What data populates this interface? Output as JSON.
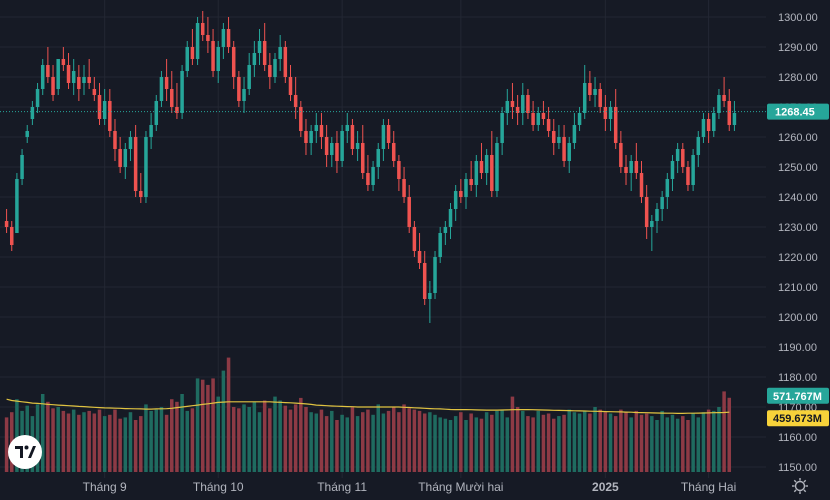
{
  "chart_data": {
    "type": "candlestick",
    "y_axis": {
      "ylim": [
        1150,
        1303
      ],
      "ticks": [
        1300,
        1290,
        1280,
        1270,
        1260,
        1250,
        1240,
        1230,
        1220,
        1210,
        1200,
        1190,
        1180,
        1170,
        1160,
        1150
      ],
      "tick_labels": [
        "1300.00",
        "1290.00",
        "1280.00",
        "1270.00",
        "1260.00",
        "1250.00",
        "1240.00",
        "1230.00",
        "1220.00",
        "1210.00",
        "1200.00",
        "1190.00",
        "1180.00",
        "1170.00",
        "1160.00",
        "1150.00"
      ]
    },
    "x_axis": {
      "labels": [
        {
          "text": "Tháng 9",
          "index": 19,
          "bold": false
        },
        {
          "text": "Tháng 10",
          "index": 41,
          "bold": false
        },
        {
          "text": "Tháng 11",
          "index": 65,
          "bold": false
        },
        {
          "text": "Tháng Mười hai",
          "index": 88,
          "bold": false
        },
        {
          "text": "2025",
          "index": 116,
          "bold": true
        },
        {
          "text": "Tháng Hai",
          "index": 136,
          "bold": false
        }
      ]
    },
    "last_price": {
      "value": 1268.45,
      "label": "1268.45",
      "color": "#26a69a"
    },
    "volume_badges": [
      {
        "label": "571.767M",
        "color": "#26a69a",
        "text_color": "#ffffff"
      },
      {
        "label": "459.673M",
        "color": "#f7d23a",
        "text_color": "#131722"
      }
    ],
    "colors": {
      "up": "#26a69a",
      "down": "#ef5350",
      "vol_up": "#1f6b60",
      "vol_down": "#8d3a45",
      "ma": "#e0c341",
      "background": "#161a25",
      "grid": "#232733"
    },
    "candles": [
      [
        1232,
        1236,
        1228,
        1230
      ],
      [
        1230,
        1232,
        1222,
        1224
      ],
      [
        1228,
        1248,
        1228,
        1246
      ],
      [
        1246,
        1256,
        1244,
        1254
      ],
      [
        1260,
        1264,
        1258,
        1262
      ],
      [
        1266,
        1272,
        1264,
        1270
      ],
      [
        1270,
        1278,
        1268,
        1276
      ],
      [
        1276,
        1286,
        1274,
        1284
      ],
      [
        1284,
        1290,
        1278,
        1280
      ],
      [
        1280,
        1284,
        1272,
        1274
      ],
      [
        1276,
        1286,
        1274,
        1286
      ],
      [
        1286,
        1290,
        1282,
        1284
      ],
      [
        1284,
        1288,
        1276,
        1278
      ],
      [
        1278,
        1286,
        1274,
        1282
      ],
      [
        1280,
        1284,
        1272,
        1276
      ],
      [
        1278,
        1284,
        1274,
        1280
      ],
      [
        1280,
        1286,
        1276,
        1278
      ],
      [
        1276,
        1280,
        1272,
        1274
      ],
      [
        1274,
        1278,
        1264,
        1266
      ],
      [
        1266,
        1276,
        1264,
        1272
      ],
      [
        1272,
        1276,
        1260,
        1262
      ],
      [
        1262,
        1266,
        1252,
        1256
      ],
      [
        1256,
        1260,
        1248,
        1250
      ],
      [
        1250,
        1258,
        1246,
        1256
      ],
      [
        1256,
        1262,
        1252,
        1260
      ],
      [
        1260,
        1264,
        1240,
        1242
      ],
      [
        1242,
        1248,
        1238,
        1240
      ],
      [
        1240,
        1262,
        1238,
        1260
      ],
      [
        1260,
        1268,
        1256,
        1264
      ],
      [
        1264,
        1274,
        1262,
        1272
      ],
      [
        1272,
        1282,
        1270,
        1280
      ],
      [
        1280,
        1286,
        1272,
        1276
      ],
      [
        1276,
        1282,
        1268,
        1270
      ],
      [
        1270,
        1278,
        1266,
        1268
      ],
      [
        1268,
        1284,
        1266,
        1282
      ],
      [
        1282,
        1292,
        1280,
        1290
      ],
      [
        1290,
        1296,
        1284,
        1286
      ],
      [
        1286,
        1300,
        1284,
        1298
      ],
      [
        1298,
        1302,
        1292,
        1294
      ],
      [
        1294,
        1300,
        1288,
        1292
      ],
      [
        1292,
        1296,
        1280,
        1282
      ],
      [
        1282,
        1292,
        1278,
        1290
      ],
      [
        1290,
        1298,
        1286,
        1296
      ],
      [
        1296,
        1300,
        1288,
        1290
      ],
      [
        1290,
        1292,
        1276,
        1280
      ],
      [
        1280,
        1282,
        1270,
        1272
      ],
      [
        1272,
        1280,
        1268,
        1276
      ],
      [
        1276,
        1288,
        1274,
        1284
      ],
      [
        1284,
        1292,
        1280,
        1288
      ],
      [
        1288,
        1296,
        1284,
        1292
      ],
      [
        1292,
        1298,
        1282,
        1284
      ],
      [
        1284,
        1288,
        1276,
        1280
      ],
      [
        1280,
        1288,
        1278,
        1286
      ],
      [
        1286,
        1294,
        1282,
        1290
      ],
      [
        1290,
        1292,
        1278,
        1280
      ],
      [
        1280,
        1284,
        1272,
        1274
      ],
      [
        1274,
        1280,
        1266,
        1270
      ],
      [
        1270,
        1272,
        1260,
        1262
      ],
      [
        1262,
        1266,
        1254,
        1258
      ],
      [
        1258,
        1264,
        1254,
        1262
      ],
      [
        1262,
        1268,
        1258,
        1264
      ],
      [
        1264,
        1268,
        1256,
        1260
      ],
      [
        1260,
        1264,
        1250,
        1254
      ],
      [
        1254,
        1260,
        1250,
        1258
      ],
      [
        1258,
        1262,
        1248,
        1252
      ],
      [
        1252,
        1264,
        1250,
        1262
      ],
      [
        1262,
        1268,
        1258,
        1264
      ],
      [
        1264,
        1266,
        1254,
        1256
      ],
      [
        1256,
        1262,
        1252,
        1258
      ],
      [
        1258,
        1264,
        1246,
        1248
      ],
      [
        1248,
        1254,
        1242,
        1244
      ],
      [
        1244,
        1252,
        1242,
        1250
      ],
      [
        1250,
        1258,
        1246,
        1256
      ],
      [
        1256,
        1266,
        1252,
        1264
      ],
      [
        1264,
        1266,
        1256,
        1258
      ],
      [
        1258,
        1262,
        1250,
        1252
      ],
      [
        1252,
        1254,
        1242,
        1246
      ],
      [
        1246,
        1250,
        1238,
        1240
      ],
      [
        1240,
        1244,
        1228,
        1230
      ],
      [
        1230,
        1232,
        1220,
        1222
      ],
      [
        1222,
        1228,
        1216,
        1218
      ],
      [
        1218,
        1222,
        1204,
        1206
      ],
      [
        1206,
        1212,
        1198,
        1208
      ],
      [
        1208,
        1222,
        1206,
        1220
      ],
      [
        1220,
        1230,
        1218,
        1228
      ],
      [
        1228,
        1232,
        1224,
        1230
      ],
      [
        1230,
        1238,
        1226,
        1236
      ],
      [
        1236,
        1244,
        1232,
        1242
      ],
      [
        1242,
        1246,
        1238,
        1240
      ],
      [
        1240,
        1248,
        1236,
        1246
      ],
      [
        1246,
        1252,
        1242,
        1244
      ],
      [
        1244,
        1254,
        1240,
        1252
      ],
      [
        1252,
        1258,
        1246,
        1248
      ],
      [
        1248,
        1256,
        1244,
        1254
      ],
      [
        1254,
        1262,
        1240,
        1242
      ],
      [
        1242,
        1260,
        1240,
        1258
      ],
      [
        1258,
        1270,
        1254,
        1268
      ],
      [
        1268,
        1276,
        1264,
        1272
      ],
      [
        1272,
        1278,
        1266,
        1270
      ],
      [
        1270,
        1274,
        1264,
        1268
      ],
      [
        1268,
        1278,
        1264,
        1274
      ],
      [
        1274,
        1276,
        1266,
        1268
      ],
      [
        1268,
        1272,
        1262,
        1264
      ],
      [
        1264,
        1270,
        1262,
        1268
      ],
      [
        1268,
        1272,
        1264,
        1266
      ],
      [
        1266,
        1270,
        1260,
        1262
      ],
      [
        1262,
        1266,
        1254,
        1258
      ],
      [
        1258,
        1264,
        1256,
        1260
      ],
      [
        1260,
        1264,
        1250,
        1252
      ],
      [
        1252,
        1260,
        1248,
        1258
      ],
      [
        1258,
        1268,
        1256,
        1264
      ],
      [
        1264,
        1270,
        1262,
        1268
      ],
      [
        1268,
        1284,
        1266,
        1278
      ],
      [
        1278,
        1282,
        1272,
        1274
      ],
      [
        1274,
        1280,
        1270,
        1276
      ],
      [
        1276,
        1278,
        1268,
        1270
      ],
      [
        1270,
        1274,
        1262,
        1266
      ],
      [
        1266,
        1272,
        1262,
        1270
      ],
      [
        1270,
        1276,
        1256,
        1258
      ],
      [
        1258,
        1262,
        1248,
        1250
      ],
      [
        1250,
        1254,
        1244,
        1248
      ],
      [
        1248,
        1254,
        1242,
        1252
      ],
      [
        1252,
        1258,
        1246,
        1248
      ],
      [
        1248,
        1252,
        1238,
        1240
      ],
      [
        1240,
        1244,
        1226,
        1230
      ],
      [
        1230,
        1234,
        1222,
        1232
      ],
      [
        1232,
        1238,
        1228,
        1236
      ],
      [
        1236,
        1242,
        1232,
        1240
      ],
      [
        1240,
        1248,
        1236,
        1246
      ],
      [
        1246,
        1254,
        1242,
        1252
      ],
      [
        1252,
        1258,
        1248,
        1256
      ],
      [
        1256,
        1258,
        1248,
        1250
      ],
      [
        1250,
        1252,
        1242,
        1244
      ],
      [
        1244,
        1256,
        1242,
        1254
      ],
      [
        1254,
        1262,
        1250,
        1260
      ],
      [
        1260,
        1268,
        1258,
        1266
      ],
      [
        1266,
        1268,
        1258,
        1262
      ],
      [
        1262,
        1270,
        1260,
        1268
      ],
      [
        1268,
        1276,
        1266,
        1274
      ],
      [
        1274,
        1280,
        1270,
        1272
      ],
      [
        1272,
        1276,
        1262,
        1264
      ],
      [
        1264,
        1272,
        1262,
        1268
      ]
    ],
    "volumes_m": [
      420,
      460,
      560,
      470,
      510,
      430,
      520,
      600,
      540,
      490,
      500,
      470,
      450,
      480,
      440,
      460,
      470,
      450,
      480,
      430,
      440,
      480,
      410,
      420,
      460,
      400,
      430,
      520,
      470,
      480,
      500,
      440,
      560,
      540,
      600,
      470,
      490,
      720,
      710,
      670,
      720,
      580,
      780,
      880,
      500,
      490,
      520,
      500,
      540,
      460,
      550,
      490,
      580,
      550,
      510,
      480,
      520,
      570,
      500,
      460,
      450,
      480,
      430,
      470,
      400,
      440,
      420,
      500,
      430,
      460,
      480,
      440,
      520,
      450,
      470,
      500,
      460,
      520,
      490,
      480,
      470,
      450,
      460,
      440,
      420,
      410,
      400,
      430,
      460,
      400,
      450,
      420,
      410,
      460,
      440,
      470,
      480,
      420,
      580,
      500,
      470,
      430,
      420,
      470,
      440,
      450,
      410,
      430,
      440,
      480,
      460,
      450,
      470,
      450,
      500,
      480,
      460,
      450,
      430,
      480,
      460,
      420,
      470,
      440,
      450,
      430,
      400,
      470,
      420,
      440,
      410,
      430,
      400,
      450,
      420,
      460,
      480,
      470,
      500,
      620,
      571
    ],
    "ma_m": [
      560,
      550,
      545,
      540,
      535,
      530,
      528,
      525,
      520,
      518,
      515,
      512,
      510,
      508,
      505,
      503,
      500,
      498,
      495,
      493,
      492,
      491,
      490,
      488,
      487,
      486,
      485,
      484,
      484,
      485,
      486,
      487,
      490,
      495,
      500,
      505,
      510,
      515,
      520,
      525,
      530,
      535,
      538,
      540,
      540,
      540,
      540,
      540,
      540,
      540,
      540,
      540,
      538,
      536,
      534,
      532,
      530,
      527,
      524,
      520,
      515,
      512,
      510,
      508,
      506,
      505,
      503,
      502,
      500,
      500,
      500,
      500,
      500,
      500,
      500,
      500,
      500,
      498,
      496,
      494,
      492,
      490,
      488,
      486,
      485,
      483,
      481,
      480,
      480,
      480,
      479,
      478,
      477,
      476,
      476,
      476,
      477,
      478,
      479,
      480,
      480,
      480,
      479,
      478,
      477,
      476,
      475,
      474,
      473,
      472,
      471,
      470,
      469,
      468,
      467,
      466,
      465,
      464,
      463,
      462,
      461,
      460,
      458,
      457,
      456,
      455,
      454,
      453,
      452,
      452,
      451,
      451,
      452,
      452,
      453,
      454,
      455,
      456,
      457,
      458,
      459.673
    ]
  },
  "ui": {
    "logo_text": "TV",
    "settings_icon": "gear-icon"
  }
}
